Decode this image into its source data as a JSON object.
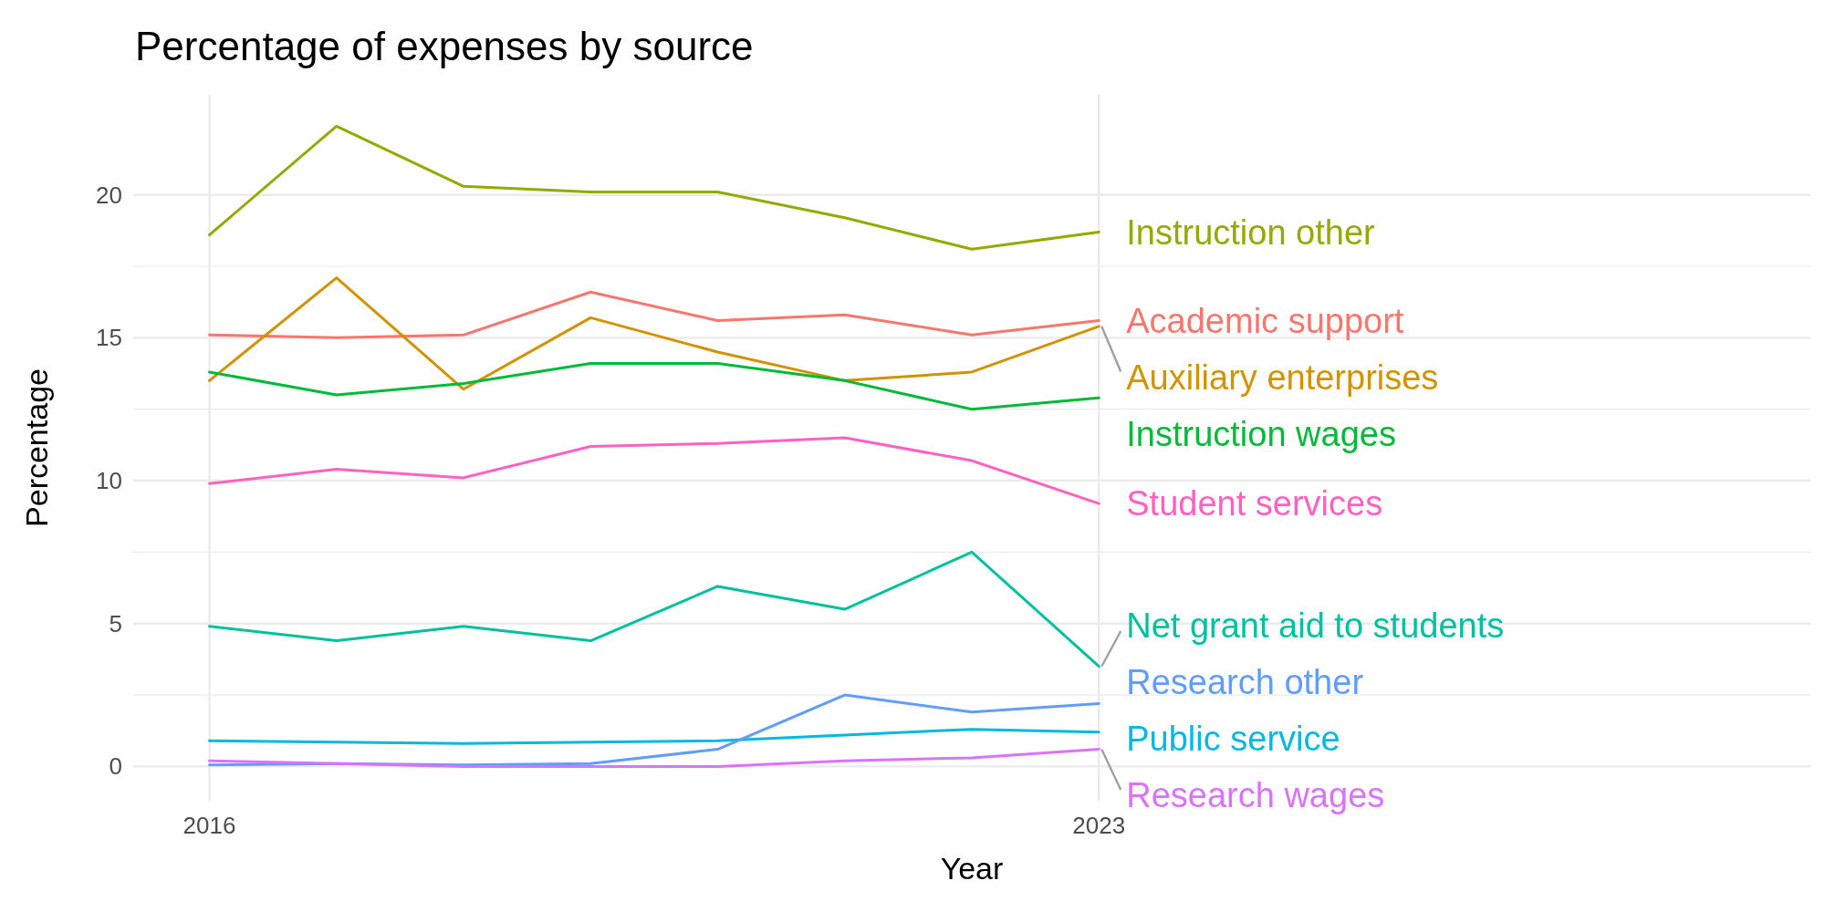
{
  "chart_data": {
    "type": "line",
    "title": "Percentage of expenses by source",
    "xlabel": "Year",
    "ylabel": "Percentage",
    "x": [
      2016,
      2017,
      2018,
      2019,
      2020,
      2021,
      2022,
      2023
    ],
    "xlim": [
      2015.4,
      2028.6
    ],
    "xticks": [
      2016,
      2023
    ],
    "ylim": [
      -1.2,
      23.5
    ],
    "yticks": [
      0,
      5,
      10,
      15,
      20
    ],
    "grid": true,
    "legend": false,
    "series": [
      {
        "name": "Academic support",
        "color": "#F8766D",
        "values": [
          15.1,
          15.0,
          15.1,
          16.6,
          15.6,
          15.8,
          15.1,
          15.6
        ]
      },
      {
        "name": "Auxiliary enterprises",
        "color": "#D39200",
        "values": [
          13.5,
          17.1,
          13.2,
          15.7,
          14.5,
          13.5,
          13.8,
          15.4
        ]
      },
      {
        "name": "Instruction other",
        "color": "#93AA00",
        "values": [
          18.6,
          22.4,
          20.3,
          20.1,
          20.1,
          19.2,
          18.1,
          18.7
        ]
      },
      {
        "name": "Instruction wages",
        "color": "#00BA38",
        "values": [
          13.8,
          13.0,
          13.4,
          14.1,
          14.1,
          13.5,
          12.5,
          12.9
        ]
      },
      {
        "name": "Net grant aid to students",
        "color": "#00C19F",
        "values": [
          4.9,
          4.4,
          4.9,
          4.4,
          6.3,
          5.5,
          7.5,
          3.5
        ]
      },
      {
        "name": "Public service",
        "color": "#00B9E3",
        "values": [
          0.9,
          0.85,
          0.8,
          0.85,
          0.9,
          1.1,
          1.3,
          1.2
        ]
      },
      {
        "name": "Research other",
        "color": "#619CFF",
        "values": [
          0.05,
          0.1,
          0.05,
          0.1,
          0.6,
          2.5,
          1.9,
          2.2
        ]
      },
      {
        "name": "Research wages",
        "color": "#DB72FB",
        "values": [
          0.2,
          0.1,
          0.0,
          0.0,
          0.0,
          0.2,
          0.3,
          0.6
        ]
      },
      {
        "name": "Student services",
        "color": "#FF61C3",
        "values": [
          9.9,
          10.4,
          10.1,
          11.2,
          11.3,
          11.5,
          10.7,
          9.2
        ]
      }
    ]
  }
}
